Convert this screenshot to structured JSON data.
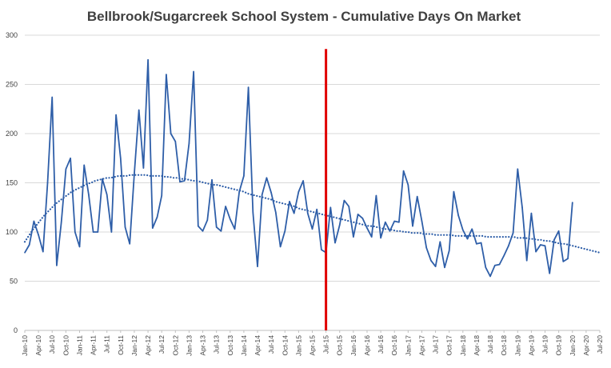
{
  "chart_data": {
    "type": "line",
    "title": "Bellbrook/Sugarcreek School System - Cumulative Days On Market",
    "xlabel": "",
    "ylabel": "",
    "ylim": [
      0,
      300
    ],
    "yticks": [
      0,
      50,
      100,
      150,
      200,
      250,
      300
    ],
    "grid": "horizontal",
    "legend": "none",
    "x_start": "Jan-10",
    "x_end": "Jul-20",
    "x_tick_labels": [
      "Jan-10",
      "Apr-10",
      "Jul-10",
      "Oct-10",
      "Jan-11",
      "Apr-11",
      "Jul-11",
      "Oct-11",
      "Jan-12",
      "Apr-12",
      "Jul-12",
      "Oct-12",
      "Jan-13",
      "Apr-13",
      "Jul-13",
      "Oct-13",
      "Jan-14",
      "Apr-14",
      "Jul-14",
      "Oct-14",
      "Jan-15",
      "Apr-15",
      "Jul-15",
      "Oct-15",
      "Jan-16",
      "Apr-16",
      "Jul-16",
      "Oct-16",
      "Jan-17",
      "Apr-17",
      "Jul-17",
      "Oct-17",
      "Jan-18",
      "Apr-18",
      "Jul-18",
      "Oct-18",
      "Jan-19",
      "Apr-19",
      "Jul-19",
      "Oct-19",
      "Jan-20",
      "Apr-20",
      "Jul-20"
    ],
    "series": [
      {
        "style": "solid",
        "color": "#2e5ea8",
        "values": [
          79,
          87,
          111,
          97,
          80,
          150,
          237,
          66,
          110,
          164,
          175,
          100,
          85,
          168,
          138,
          100,
          100,
          154,
          138,
          100,
          219,
          175,
          105,
          88,
          160,
          224,
          165,
          275,
          104,
          115,
          137,
          260,
          200,
          192,
          151,
          152,
          190,
          263,
          106,
          101,
          112,
          153,
          105,
          101,
          126,
          113,
          103,
          141,
          157,
          247,
          120,
          65,
          138,
          155,
          140,
          120,
          85,
          101,
          131,
          119,
          141,
          152,
          119,
          103,
          123,
          82,
          79,
          125,
          89,
          107,
          132,
          126,
          95,
          118,
          114,
          104,
          95,
          137,
          94,
          110,
          101,
          111,
          110,
          162,
          148,
          106,
          136,
          111,
          84,
          71,
          65,
          90,
          64,
          81,
          141,
          117,
          102,
          93,
          103,
          88,
          89,
          64,
          55,
          66,
          67,
          76,
          86,
          99,
          164,
          125,
          71,
          119,
          80,
          87,
          86,
          58,
          92,
          101,
          70,
          73,
          130
        ]
      },
      {
        "style": "dotted",
        "color": "#2e5ea8",
        "trendline": "polynomial",
        "values": [
          90,
          96,
          102,
          107,
          112,
          117,
          121,
          125,
          129,
          132,
          135,
          138,
          141,
          143,
          145,
          147,
          149,
          150,
          152,
          153,
          154,
          155,
          155,
          156,
          157,
          157,
          157,
          158,
          158,
          158,
          158,
          158,
          157,
          157,
          157,
          157,
          156,
          156,
          155,
          155,
          154,
          154,
          153,
          152,
          152,
          151,
          150,
          149,
          148,
          148,
          147,
          146,
          145,
          144,
          143,
          142,
          141,
          139,
          138,
          137,
          136,
          135,
          134,
          133,
          131,
          130,
          129,
          128,
          127,
          126,
          124,
          123,
          122,
          121,
          120,
          119,
          118,
          117,
          116,
          115,
          114,
          113,
          112,
          111,
          110,
          109,
          108,
          107,
          106,
          106,
          105,
          104,
          103,
          103,
          102,
          101,
          101,
          100,
          100,
          99,
          99,
          99,
          98,
          98,
          98,
          97,
          97,
          97,
          97,
          97,
          96,
          96,
          96,
          96,
          96,
          96,
          96,
          96,
          95,
          95,
          95,
          95,
          95,
          95,
          95,
          95,
          94,
          94,
          94,
          93,
          93,
          92,
          92,
          91,
          91,
          90,
          89,
          88,
          88,
          87,
          86,
          85,
          84,
          83,
          82,
          81,
          80,
          79
        ]
      }
    ],
    "annotations": [
      {
        "type": "vertical-line",
        "color": "#e00000",
        "x": "Jul-15",
        "y_range": [
          0,
          286
        ]
      }
    ]
  }
}
